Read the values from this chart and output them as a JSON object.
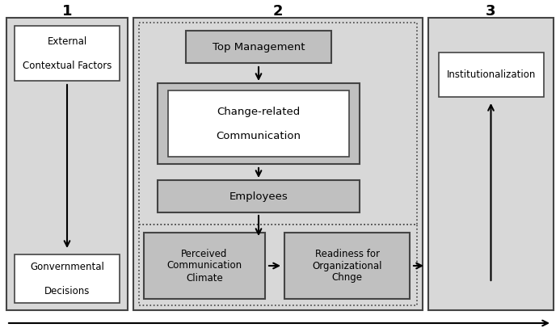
{
  "bg_color": "#ffffff",
  "light_gray": "#d8d8d8",
  "mid_gray": "#c0c0c0",
  "white": "#ffffff",
  "edge_color": "#444444",
  "phase1_label": "1",
  "phase2_label": "2",
  "phase3_label": "3",
  "box_texts": {
    "external": "External\n\nContextual Factors",
    "governmental": "Gonvernmental\n\nDecisions",
    "top_management": "Top Management",
    "change_related_inner": "Change-related\n\nCommunication",
    "employees": "Employees",
    "perceived": "Perceived\nCommunication\nClimate",
    "readiness": "Readiness for\nOrganizational\nChnge",
    "institutionalization": "Institutionalization"
  }
}
